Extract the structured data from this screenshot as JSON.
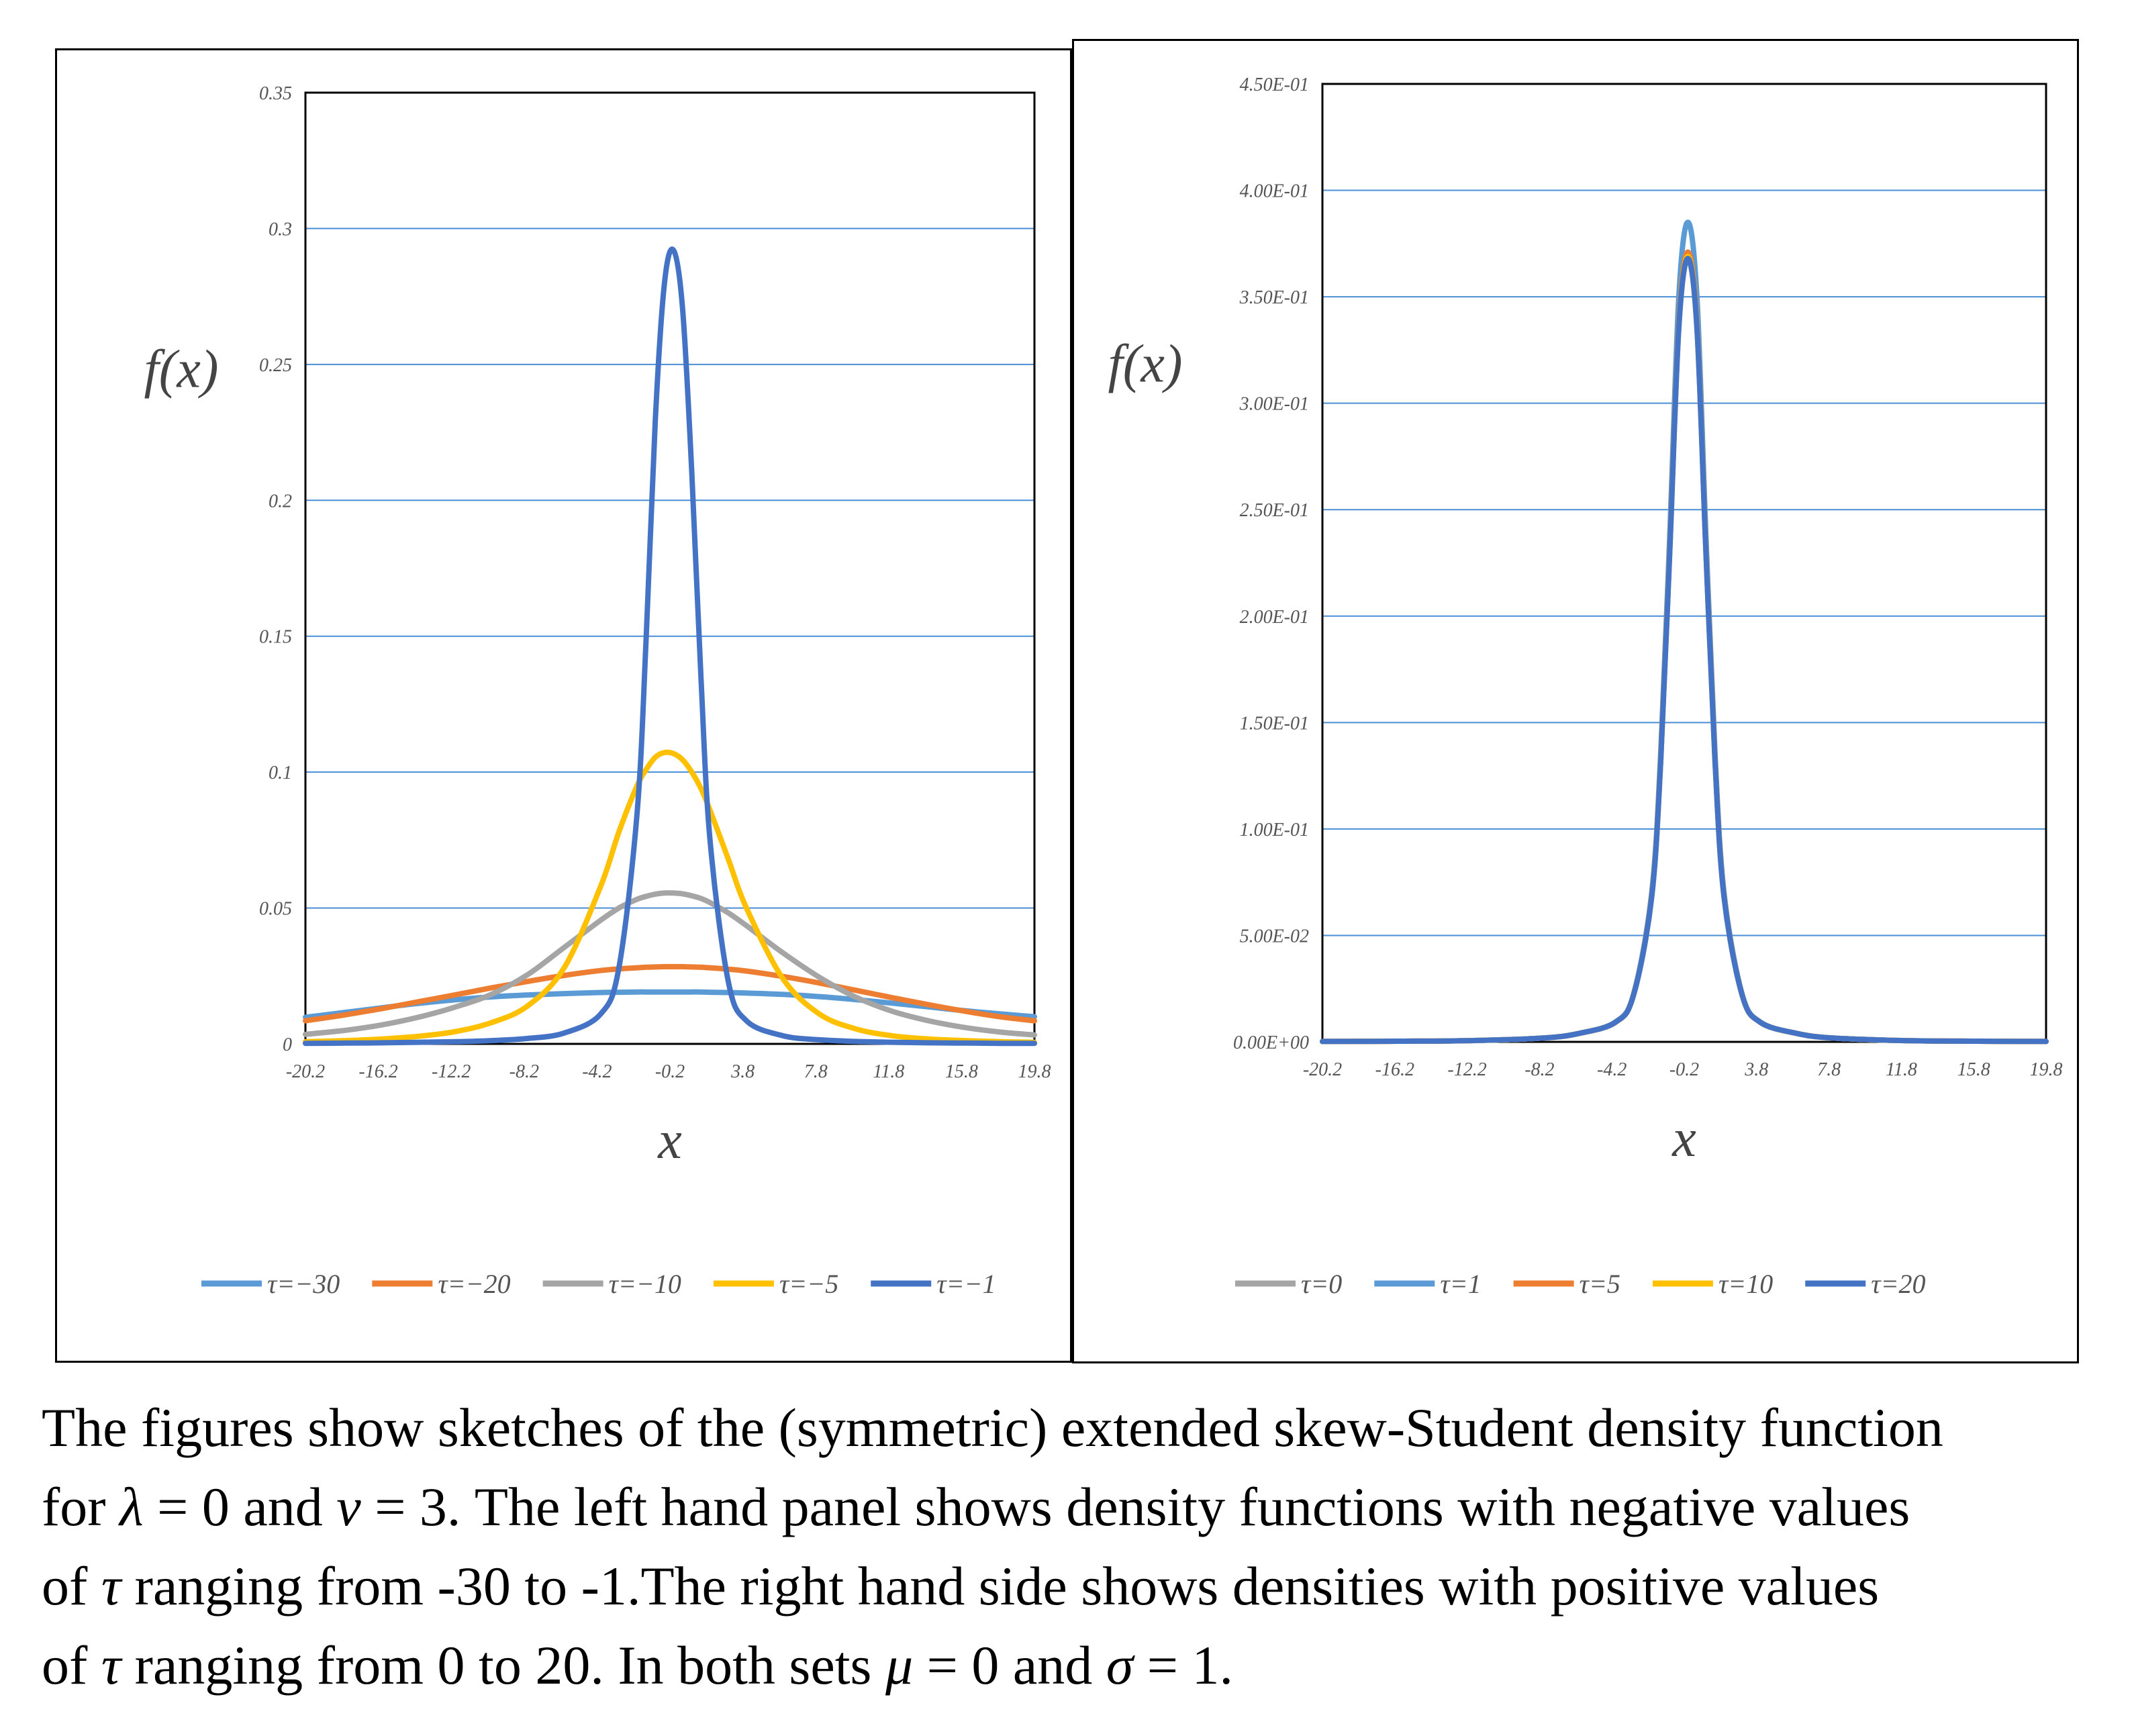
{
  "chart_data": [
    {
      "type": "line",
      "panel": "left",
      "xlabel": "x",
      "ylabel": "f(x)",
      "xlim": [
        -20.2,
        19.8
      ],
      "ylim": [
        0,
        0.35
      ],
      "x_tick_labels": [
        "-20.2",
        "-16.2",
        "-12.2",
        "-8.2",
        "-4.2",
        "-0.2",
        "3.8",
        "7.8",
        "11.8",
        "15.8",
        "19.8"
      ],
      "y_tick_labels": [
        "0",
        "0.05",
        "0.1",
        "0.15",
        "0.2",
        "0.25",
        "0.3",
        "0.35"
      ],
      "y_ticks": [
        0,
        0.05,
        0.1,
        0.15,
        0.2,
        0.25,
        0.3,
        0.35
      ],
      "grid": "horizontal",
      "legend_position": "bottom",
      "x": [
        -20.2,
        -18,
        -16,
        -14,
        -12,
        -10,
        -8,
        -6,
        -4,
        -3,
        -2,
        -1.5,
        -1,
        -0.5,
        0,
        0.5,
        1,
        1.5,
        2,
        3,
        4,
        6,
        8,
        10,
        12,
        14,
        16,
        18,
        19.8
      ],
      "series": [
        {
          "name": "τ=−30",
          "color": "#5b9bd5",
          "values": [
            0.0098,
            0.0116,
            0.0133,
            0.0149,
            0.0162,
            0.0173,
            0.018,
            0.0185,
            0.0189,
            0.019,
            0.0191,
            0.0191,
            0.0191,
            0.0191,
            0.0191,
            0.0191,
            0.0191,
            0.0191,
            0.019,
            0.0189,
            0.0187,
            0.0182,
            0.0174,
            0.0163,
            0.015,
            0.0136,
            0.0122,
            0.011,
            0.01
          ]
        },
        {
          "name": "τ=−20",
          "color": "#ed7d31",
          "values": [
            0.0085,
            0.0107,
            0.013,
            0.0155,
            0.018,
            0.0206,
            0.023,
            0.0252,
            0.027,
            0.0276,
            0.028,
            0.0282,
            0.0283,
            0.0284,
            0.0284,
            0.0284,
            0.0283,
            0.0282,
            0.028,
            0.0275,
            0.0268,
            0.0248,
            0.0224,
            0.0197,
            0.017,
            0.0144,
            0.012,
            0.0099,
            0.0085
          ]
        },
        {
          "name": "τ=−10",
          "color": "#a5a5a5",
          "values": [
            0.0035,
            0.005,
            0.007,
            0.0098,
            0.0135,
            0.0182,
            0.0255,
            0.0355,
            0.0455,
            0.05,
            0.0532,
            0.0543,
            0.0551,
            0.0555,
            0.0555,
            0.0552,
            0.0545,
            0.0535,
            0.052,
            0.0482,
            0.0435,
            0.0335,
            0.0245,
            0.0172,
            0.012,
            0.0085,
            0.006,
            0.0043,
            0.0033
          ]
        },
        {
          "name": "τ=−5",
          "color": "#ffc000",
          "values": [
            0.0008,
            0.0012,
            0.0018,
            0.0028,
            0.0045,
            0.0078,
            0.014,
            0.028,
            0.058,
            0.078,
            0.095,
            0.101,
            0.1055,
            0.1072,
            0.1068,
            0.1045,
            0.1,
            0.094,
            0.086,
            0.068,
            0.05,
            0.024,
            0.011,
            0.0055,
            0.003,
            0.0018,
            0.0012,
            0.0008,
            0.0006
          ]
        },
        {
          "name": "τ=−1",
          "color": "#4472c4",
          "values": [
            0.0002,
            0.0003,
            0.0004,
            0.0006,
            0.0008,
            0.0012,
            0.002,
            0.004,
            0.011,
            0.028,
            0.085,
            0.15,
            0.23,
            0.28,
            0.292,
            0.27,
            0.21,
            0.135,
            0.075,
            0.023,
            0.0085,
            0.003,
            0.0015,
            0.0009,
            0.0006,
            0.0004,
            0.0003,
            0.0002,
            0.0002
          ]
        }
      ]
    },
    {
      "type": "line",
      "panel": "right",
      "xlabel": "x",
      "ylabel": "f(x)",
      "xlim": [
        -20.2,
        19.8
      ],
      "ylim": [
        0,
        0.45
      ],
      "x_tick_labels": [
        "-20.2",
        "-16.2",
        "-12.2",
        "-8.2",
        "-4.2",
        "-0.2",
        "3.8",
        "7.8",
        "11.8",
        "15.8",
        "19.8"
      ],
      "y_tick_labels": [
        "0.00E+00",
        "5.00E-02",
        "1.00E-01",
        "1.50E-01",
        "2.00E-01",
        "2.50E-01",
        "3.00E-01",
        "3.50E-01",
        "4.00E-01",
        "4.50E-01"
      ],
      "y_ticks": [
        0,
        0.05,
        0.1,
        0.15,
        0.2,
        0.25,
        0.3,
        0.35,
        0.4,
        0.45
      ],
      "grid": "horizontal",
      "legend_position": "bottom",
      "x": [
        -20.2,
        -16,
        -12,
        -8,
        -6,
        -4,
        -3,
        -2,
        -1.5,
        -1,
        -0.5,
        0,
        0.5,
        1,
        1.5,
        2,
        3,
        4,
        6,
        8,
        12,
        16,
        19.8
      ],
      "series": [
        {
          "name": "τ=0",
          "color": "#a5a5a5",
          "values": [
            0.0002,
            0.0003,
            0.0006,
            0.0018,
            0.004,
            0.0092,
            0.022,
            0.068,
            0.132,
            0.23,
            0.335,
            0.3676,
            0.335,
            0.23,
            0.132,
            0.068,
            0.022,
            0.0092,
            0.004,
            0.0018,
            0.0006,
            0.0003,
            0.0002
          ]
        },
        {
          "name": "τ=1",
          "color": "#5b9bd5",
          "values": [
            0.0002,
            0.0003,
            0.0006,
            0.0018,
            0.004,
            0.0094,
            0.0225,
            0.07,
            0.136,
            0.238,
            0.35,
            0.385,
            0.35,
            0.238,
            0.136,
            0.07,
            0.0225,
            0.0094,
            0.004,
            0.0018,
            0.0006,
            0.0003,
            0.0002
          ]
        },
        {
          "name": "τ=5",
          "color": "#ed7d31",
          "values": [
            0.0002,
            0.0003,
            0.0006,
            0.0018,
            0.004,
            0.0092,
            0.0221,
            0.0685,
            0.133,
            0.232,
            0.338,
            0.371,
            0.338,
            0.232,
            0.133,
            0.0685,
            0.0221,
            0.0092,
            0.004,
            0.0018,
            0.0006,
            0.0003,
            0.0002
          ]
        },
        {
          "name": "τ=10",
          "color": "#ffc000",
          "values": [
            0.0002,
            0.0003,
            0.0006,
            0.0018,
            0.004,
            0.0092,
            0.022,
            0.0682,
            0.1325,
            0.231,
            0.3365,
            0.369,
            0.3365,
            0.231,
            0.1325,
            0.0682,
            0.022,
            0.0092,
            0.004,
            0.0018,
            0.0006,
            0.0003,
            0.0002
          ]
        },
        {
          "name": "τ=20",
          "color": "#4472c4",
          "values": [
            0.0002,
            0.0003,
            0.0006,
            0.0018,
            0.004,
            0.0092,
            0.022,
            0.068,
            0.132,
            0.23,
            0.3355,
            0.368,
            0.3355,
            0.23,
            0.132,
            0.068,
            0.022,
            0.0092,
            0.004,
            0.0018,
            0.0006,
            0.0003,
            0.0002
          ]
        }
      ]
    }
  ],
  "caption": {
    "line1": "The figures show sketches of the (symmetric) extended skew-Student density function",
    "line2_a": "for ",
    "lambda": "λ",
    "line2_b": " = 0 and ",
    "nu": "ν",
    "line2_c": " = 3. The left hand panel shows density functions with negative values",
    "line3_a": "of ",
    "tau1": "τ",
    "line3_b": "  ranging from -30 to -1.The right hand side shows densities with positive values",
    "line4_a": "of ",
    "tau2": "τ",
    "line4_b": " ranging from 0 to 20. In both sets ",
    "mu": "μ",
    "line4_c": " = 0 and ",
    "sigma": "σ",
    "line4_d": " = 1."
  }
}
